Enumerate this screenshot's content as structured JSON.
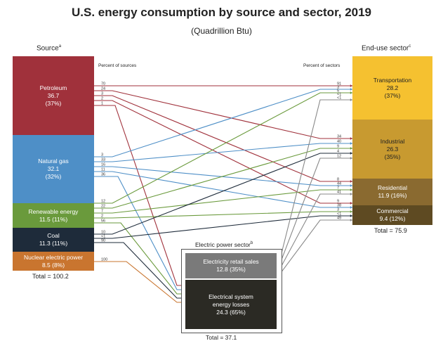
{
  "title": "U.S. energy consumption by source and sector, 2019",
  "subtitle": "(Quadrillion Btu)",
  "headers": {
    "source": "Source",
    "source_note": "a",
    "end_use": "End-use sector",
    "end_use_note": "c",
    "percent_of_sources": "Percent of sources",
    "percent_of_sectors": "Percent of sectors",
    "electric_power": "Electric power sector",
    "electric_power_note": "b"
  },
  "sources": [
    {
      "name": "Petroleum",
      "value": "36.7",
      "pct": "(37%)",
      "color": "#a0313b"
    },
    {
      "name": "Natural gas",
      "value": "32.1",
      "pct": "(32%)",
      "color": "#4e8fc7"
    },
    {
      "name": "Renewable energy",
      "value": "11.5 (11%)",
      "color": "#6a9a3c"
    },
    {
      "name": "Coal",
      "value": "11.3 (11%)",
      "color": "#1e2b3a"
    },
    {
      "name": "Nuclear electric power",
      "value": "8.5 (8%)",
      "color": "#c9752f"
    }
  ],
  "sources_total": "Total = 100.2",
  "sectors": [
    {
      "name": "Transportation",
      "value": "28.2",
      "pct": "(37%)",
      "color": "#f5c130"
    },
    {
      "name": "Industrial",
      "value": "26.3",
      "pct": "(35%)",
      "color": "#c89a30"
    },
    {
      "name": "Residential",
      "value": "11.9 (16%)",
      "color": "#8a6a30"
    },
    {
      "name": "Commercial",
      "value": "9.4 (12%)",
      "color": "#5e4a22"
    }
  ],
  "sectors_total": "Total = 75.9",
  "electric": {
    "retail_label": "Electricity retail sales",
    "retail_value": "12.8 (35%)",
    "losses_line1": "Electrical system",
    "losses_line2": "energy losses",
    "losses_value": "24.3 (65%)",
    "total": "Total = 37.1"
  },
  "source_percents": {
    "petroleum": [
      "70",
      "24",
      "3",
      "2",
      "1"
    ],
    "natural_gas": [
      "3",
      "33",
      "16",
      "11",
      "36"
    ],
    "renewable": [
      "12",
      "22",
      "7",
      "2",
      "56"
    ],
    "coal": [
      "10",
      "<1",
      "90"
    ],
    "nuclear": [
      "100"
    ]
  },
  "sector_percents": {
    "transportation": [
      "91",
      "3",
      "5",
      "<1",
      "<1"
    ],
    "industrial": [
      "34",
      "40",
      "9",
      "4",
      "12"
    ],
    "residential": [
      "8",
      "44",
      "7",
      "41"
    ],
    "commercial": [
      "9",
      "38",
      "3",
      "<1",
      "49"
    ]
  },
  "colors": {
    "petroleum": "#a0313b",
    "natural_gas": "#4e8fc7",
    "renewable": "#6a9a3c",
    "coal": "#1e2b3a",
    "nuclear": "#c9752f",
    "electricity": "#888888",
    "retail_box": "#7a7a7a",
    "losses_box": "#2b2a24"
  }
}
